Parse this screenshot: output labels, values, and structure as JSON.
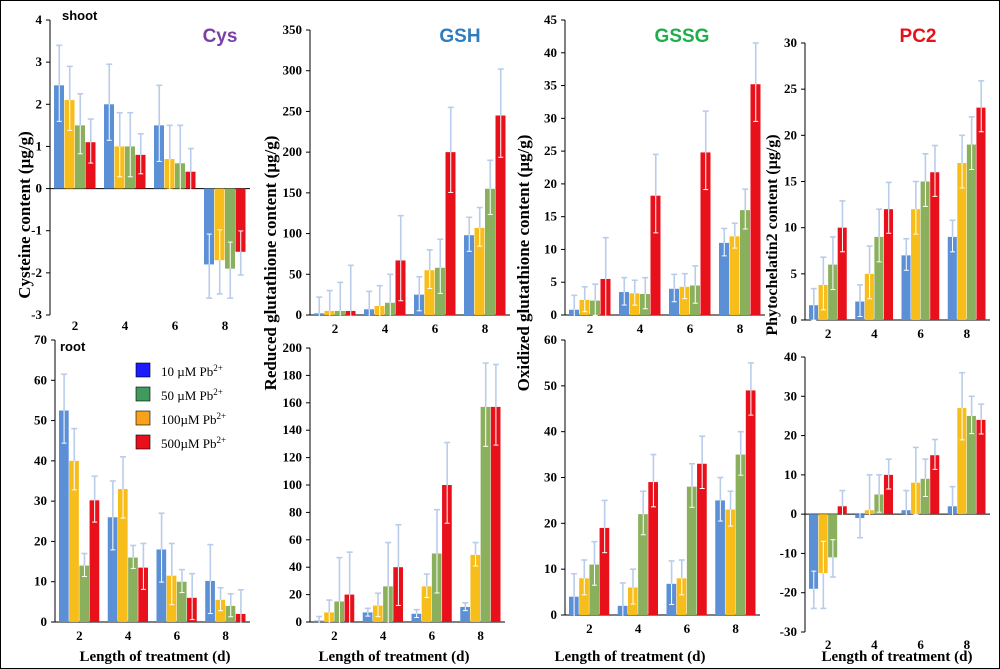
{
  "colors": {
    "10": "#5b8fd6",
    "50": "#8ab05e",
    "100": "#f7bd1a",
    "500": "#e8101a",
    "error": "#b9cdea",
    "axis": "#000000"
  },
  "x_axis_label": "Length of treatment (d)",
  "labels": {
    "shoot": "shoot",
    "root": "root"
  },
  "ylabels": {
    "cys": "Cysteine content (µg/g)",
    "gsh": "Reduced glutathione content (µg/g)",
    "gssg": "Oxidized glutathione content (µg/g)",
    "pc2": "Phytochelatin2 content (µg/g)"
  },
  "legend": [
    {
      "key": "10",
      "text": "10 µM Pb",
      "sup": "2+",
      "color": "#1b1bff"
    },
    {
      "key": "50",
      "text": "50 µM Pb",
      "sup": "2+",
      "color": "#3f9a5c"
    },
    {
      "key": "100",
      "text": "100µM Pb",
      "sup": "2+",
      "color": "#f7a21a"
    },
    {
      "key": "500",
      "text": "500µM Pb",
      "sup": "2+",
      "color": "#e8101a"
    }
  ],
  "chart_data": [
    {
      "id": "shoot-cys",
      "type": "bar",
      "title": "Cys",
      "title_color": "#7b3fa8",
      "tag": "shoot",
      "categories": [
        "2",
        "4",
        "6",
        "8"
      ],
      "ylim": [
        -3,
        4
      ],
      "yticks": [
        -3,
        -2,
        -1,
        0,
        1,
        2,
        3,
        4
      ],
      "series": [
        {
          "name": "10 µM Pb2+",
          "key": "10",
          "values": [
            2.45,
            2.0,
            1.5,
            -1.8
          ],
          "errors": [
            0.95,
            0.95,
            0.95,
            0.8
          ]
        },
        {
          "name": "50 µM Pb2+",
          "key": "50",
          "values": [
            1.5,
            1.0,
            0.6,
            -1.9
          ],
          "errors": [
            0.75,
            0.8,
            0.9,
            0.7
          ]
        },
        {
          "name": "100µM Pb2+",
          "key": "100",
          "values": [
            2.1,
            1.0,
            0.7,
            -1.7
          ],
          "errors": [
            0.8,
            0.8,
            0.8,
            0.8
          ]
        },
        {
          "name": "500µM Pb2+",
          "key": "500",
          "values": [
            1.1,
            0.8,
            0.4,
            -1.5
          ],
          "errors": [
            0.55,
            0.5,
            0.55,
            0.55
          ]
        }
      ]
    },
    {
      "id": "shoot-gsh",
      "type": "bar",
      "title": "GSH",
      "title_color": "#2f7dc0",
      "categories": [
        "2",
        "4",
        "6",
        "8"
      ],
      "ylim": [
        0,
        350
      ],
      "yticks": [
        0,
        50,
        100,
        150,
        200,
        250,
        300,
        350
      ],
      "series": [
        {
          "name": "10 µM Pb2+",
          "key": "10",
          "values": [
            2,
            7,
            25,
            98
          ],
          "errors": [
            20,
            22,
            22,
            22
          ]
        },
        {
          "name": "50 µM Pb2+",
          "key": "50",
          "values": [
            5,
            15,
            58,
            155
          ],
          "errors": [
            35,
            35,
            35,
            35
          ]
        },
        {
          "name": "100µM Pb2+",
          "key": "100",
          "values": [
            5,
            11,
            55,
            107
          ],
          "errors": [
            25,
            25,
            25,
            25
          ]
        },
        {
          "name": "500µM Pb2+",
          "key": "500",
          "values": [
            5,
            67,
            200,
            245
          ],
          "errors": [
            56,
            55,
            55,
            57
          ]
        }
      ]
    },
    {
      "id": "shoot-gssg",
      "type": "bar",
      "title": "GSSG",
      "title_color": "#1fae4b",
      "categories": [
        "2",
        "4",
        "6",
        "8"
      ],
      "ylim": [
        0,
        45
      ],
      "yticks": [
        0,
        5,
        10,
        15,
        20,
        25,
        30,
        35,
        40,
        45
      ],
      "series": [
        {
          "name": "10 µM Pb2+",
          "key": "10",
          "values": [
            0.8,
            3.5,
            4.0,
            11.0
          ],
          "errors": [
            2.2,
            2.2,
            2.2,
            2.2
          ]
        },
        {
          "name": "50 µM Pb2+",
          "key": "50",
          "values": [
            2.2,
            3.2,
            4.5,
            16.0
          ],
          "errors": [
            2.5,
            2.5,
            3.0,
            3.2
          ]
        },
        {
          "name": "100µM Pb2+",
          "key": "100",
          "values": [
            2.3,
            3.3,
            4.3,
            12.0
          ],
          "errors": [
            2.0,
            2.0,
            2.0,
            2.0
          ]
        },
        {
          "name": "500µM Pb2+",
          "key": "500",
          "values": [
            5.5,
            18.2,
            24.8,
            35.2
          ],
          "errors": [
            6.3,
            6.3,
            6.3,
            6.3
          ]
        }
      ]
    },
    {
      "id": "shoot-pc2",
      "type": "bar",
      "title": "PC2",
      "title_color": "#e8101a",
      "categories": [
        "2",
        "4",
        "6",
        "8"
      ],
      "ylim": [
        0,
        30
      ],
      "yticks": [
        0,
        5,
        10,
        15,
        20,
        25,
        30
      ],
      "series": [
        {
          "name": "10 µM Pb2+",
          "key": "10",
          "values": [
            1.6,
            2.0,
            7.0,
            9.0
          ],
          "errors": [
            1.8,
            1.8,
            1.8,
            1.8
          ]
        },
        {
          "name": "50 µM Pb2+",
          "key": "50",
          "values": [
            6.0,
            9.0,
            15.0,
            19.0
          ],
          "errors": [
            3.0,
            3.0,
            3.0,
            3.0
          ]
        },
        {
          "name": "100µM Pb2+",
          "key": "100",
          "values": [
            3.8,
            5.0,
            12.0,
            17.0
          ],
          "errors": [
            3.0,
            3.0,
            3.0,
            3.0
          ]
        },
        {
          "name": "500µM Pb2+",
          "key": "500",
          "values": [
            10.0,
            12.0,
            16.0,
            23.0
          ],
          "errors": [
            2.9,
            2.9,
            2.9,
            2.9
          ]
        }
      ]
    },
    {
      "id": "root-cys",
      "type": "bar",
      "tag": "root",
      "categories": [
        "2",
        "4",
        "6",
        "8"
      ],
      "ylim": [
        0,
        70
      ],
      "yticks": [
        0,
        10,
        20,
        30,
        40,
        50,
        60,
        70
      ],
      "series": [
        {
          "name": "10 µM Pb2+",
          "key": "10",
          "values": [
            52.5,
            26.0,
            18.0,
            10.2
          ],
          "errors": [
            9,
            9,
            9,
            9
          ]
        },
        {
          "name": "50 µM Pb2+",
          "key": "50",
          "values": [
            14.0,
            16.0,
            10.0,
            4.0
          ],
          "errors": [
            3,
            3,
            3,
            3
          ]
        },
        {
          "name": "100µM Pb2+",
          "key": "100",
          "values": [
            40.0,
            33.0,
            11.5,
            5.5
          ],
          "errors": [
            8,
            8,
            8,
            3
          ]
        },
        {
          "name": "500µM Pb2+",
          "key": "500",
          "values": [
            30.2,
            13.5,
            6.0,
            2.0
          ],
          "errors": [
            6,
            6,
            6,
            6
          ]
        }
      ]
    },
    {
      "id": "root-gsh",
      "type": "bar",
      "categories": [
        "2",
        "4",
        "6",
        "8"
      ],
      "ylim": [
        0,
        200
      ],
      "yticks": [
        0,
        20,
        40,
        60,
        80,
        100,
        120,
        140,
        160,
        180,
        200
      ],
      "series": [
        {
          "name": "10 µM Pb2+",
          "key": "10",
          "values": [
            1,
            7,
            6,
            11
          ],
          "errors": [
            3,
            3,
            3,
            3
          ]
        },
        {
          "name": "50 µM Pb2+",
          "key": "50",
          "values": [
            15,
            26,
            50,
            157
          ],
          "errors": [
            32,
            32,
            32,
            32
          ]
        },
        {
          "name": "100µM Pb2+",
          "key": "100",
          "values": [
            7,
            12,
            26,
            49
          ],
          "errors": [
            9,
            9,
            9,
            9
          ]
        },
        {
          "name": "500µM Pb2+",
          "key": "500",
          "values": [
            20,
            40,
            100,
            157
          ],
          "errors": [
            31,
            31,
            31,
            31
          ]
        }
      ]
    },
    {
      "id": "root-gssg",
      "type": "bar",
      "categories": [
        "2",
        "4",
        "6",
        "8"
      ],
      "ylim": [
        0,
        60
      ],
      "yticks": [
        0,
        10,
        20,
        30,
        40,
        50,
        60
      ],
      "series": [
        {
          "name": "10 µM Pb2+",
          "key": "10",
          "values": [
            4,
            2,
            6.8,
            25
          ],
          "errors": [
            5,
            5,
            5,
            5
          ]
        },
        {
          "name": "50 µM Pb2+",
          "key": "50",
          "values": [
            11,
            22,
            28,
            35
          ],
          "errors": [
            5,
            5,
            5,
            5
          ]
        },
        {
          "name": "100µM Pb2+",
          "key": "100",
          "values": [
            8,
            6,
            8,
            23
          ],
          "errors": [
            4,
            4,
            4,
            4
          ]
        },
        {
          "name": "500µM Pb2+",
          "key": "500",
          "values": [
            19,
            29,
            33,
            49
          ],
          "errors": [
            6,
            6,
            6,
            6
          ]
        }
      ]
    },
    {
      "id": "root-pc2",
      "type": "bar",
      "categories": [
        "2",
        "4",
        "6",
        "8"
      ],
      "ylim": [
        -30,
        40
      ],
      "yticks": [
        -30,
        -20,
        -10,
        0,
        10,
        20,
        30,
        40
      ],
      "series": [
        {
          "name": "10 µM Pb2+",
          "key": "10",
          "values": [
            -19,
            -1,
            1,
            2
          ],
          "errors": [
            5,
            5,
            5,
            5
          ]
        },
        {
          "name": "50 µM Pb2+",
          "key": "50",
          "values": [
            -11,
            5,
            9,
            25
          ],
          "errors": [
            5,
            5,
            5,
            5
          ]
        },
        {
          "name": "100µM Pb2+",
          "key": "100",
          "values": [
            -15,
            1,
            8,
            27
          ],
          "errors": [
            9,
            9,
            9,
            9
          ]
        },
        {
          "name": "500µM Pb2+",
          "key": "500",
          "values": [
            2,
            10,
            15,
            24
          ],
          "errors": [
            4,
            4,
            4,
            4
          ]
        }
      ]
    }
  ]
}
